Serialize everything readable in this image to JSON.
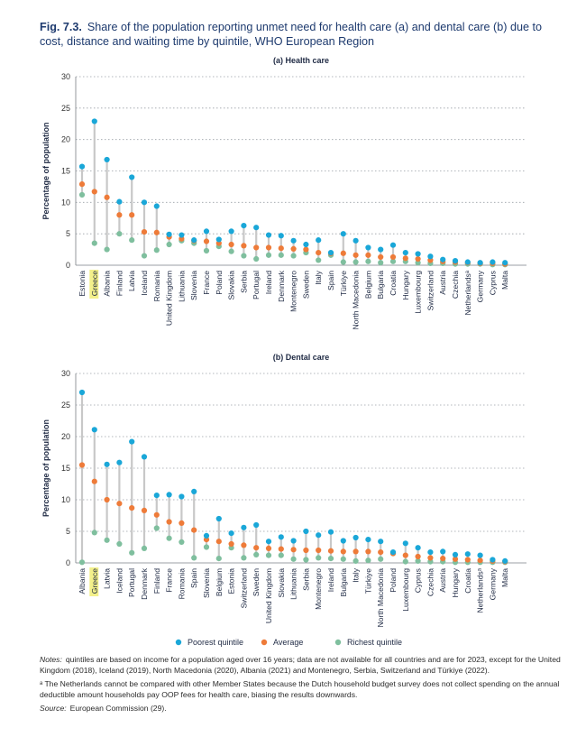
{
  "figure": {
    "number": "Fig. 7.3.",
    "title": "Share of the population reporting unmet need for health care (a) and dental care (b) due to cost, distance and waiting time by quintile, WHO European Region"
  },
  "legend": {
    "items": [
      {
        "label": "Poorest quintile",
        "color": "#1aa7d8"
      },
      {
        "label": "Average",
        "color": "#ee7b39"
      },
      {
        "label": "Richest quintile",
        "color": "#7fbf9e"
      }
    ]
  },
  "notes": {
    "notes_label": "Notes:",
    "notes_text": "quintiles are based on income for a population aged over 16 years; data are not available for all countries and are for 2023, except for the United Kingdom (2018), Iceland (2019), North Macedonia (2020), Albania (2021) and Montenegro, Serbia, Switzerland and Türkiye (2022).",
    "footnote_mark": "ᵃ",
    "footnote_text": "The Netherlands cannot be compared with other Member States because the Dutch household budget survey does not collect spending on the annual deductible amount households pay OOP fees for health care, biasing the results downwards.",
    "source_label": "Source:",
    "source_text": "European Commission (29)."
  },
  "colors": {
    "poorest": "#1aa7d8",
    "average": "#ee7b39",
    "richest": "#7fbf9e",
    "range_line": "#c8c8c8",
    "highlight": "#f3f08a"
  },
  "chart_data": [
    {
      "type": "scatter",
      "title": "(a) Health care",
      "ylabel": "Percentage of population",
      "xlabel": "",
      "ylim": [
        0,
        30
      ],
      "yticks": [
        0,
        5,
        10,
        15,
        20,
        25,
        30
      ],
      "grid": true,
      "highlight": "Greece",
      "categories": [
        "Estonia",
        "Greece",
        "Albania",
        "Finland",
        "Latvia",
        "Iceland",
        "Romania",
        "United Kingdom",
        "Lithuania",
        "Slovenia",
        "France",
        "Poland",
        "Slovakia",
        "Serbia",
        "Portugal",
        "Ireland",
        "Denmark",
        "Montenegro",
        "Sweden",
        "Italy",
        "Spain",
        "Türkiye",
        "North Macedonia",
        "Belgium",
        "Bulgaria",
        "Croatia",
        "Hungary",
        "Luxembourg",
        "Switzerland",
        "Austria",
        "Czechia",
        "Netherlandsᵃ",
        "Germany",
        "Cyprus",
        "Malta"
      ],
      "series": [
        {
          "name": "Poorest quintile",
          "values": [
            15.7,
            22.9,
            16.8,
            10.1,
            14.0,
            10.0,
            9.4,
            4.9,
            4.8,
            4.0,
            5.4,
            4.1,
            5.4,
            6.3,
            6.0,
            4.8,
            4.7,
            3.9,
            3.3,
            4.0,
            2.0,
            5.0,
            3.9,
            2.8,
            2.5,
            3.2,
            2.0,
            1.8,
            1.4,
            0.9,
            0.7,
            0.5,
            0.4,
            0.5,
            0.4
          ]
        },
        {
          "name": "Average",
          "values": [
            12.9,
            11.7,
            10.8,
            8.0,
            8.0,
            5.3,
            5.2,
            4.5,
            4.2,
            3.9,
            3.8,
            3.5,
            3.3,
            3.1,
            2.8,
            2.8,
            2.7,
            2.6,
            2.5,
            2.0,
            1.9,
            1.9,
            1.6,
            1.6,
            1.3,
            1.3,
            1.1,
            1.0,
            0.8,
            0.6,
            0.5,
            0.4,
            0.3,
            0.3,
            0.2
          ]
        },
        {
          "name": "Richest quintile",
          "values": [
            11.2,
            3.5,
            2.5,
            5.0,
            4.0,
            1.5,
            2.4,
            3.3,
            3.9,
            3.5,
            2.3,
            3.0,
            2.2,
            1.5,
            1.0,
            1.6,
            1.6,
            1.5,
            2.0,
            0.8,
            1.6,
            0.5,
            0.5,
            0.6,
            0.4,
            0.6,
            0.6,
            0.4,
            0.3,
            0.3,
            0.2,
            0.2,
            0.2,
            0.1,
            0.1
          ]
        }
      ]
    },
    {
      "type": "scatter",
      "title": "(b) Dental care",
      "ylabel": "Percentage of population",
      "xlabel": "",
      "ylim": [
        0,
        30
      ],
      "yticks": [
        0,
        5,
        10,
        15,
        20,
        25,
        30
      ],
      "grid": true,
      "highlight": "Greece",
      "categories": [
        "Albania",
        "Greece",
        "Latvia",
        "Iceland",
        "Portugal",
        "Denmark",
        "Finland",
        "France",
        "Romania",
        "Spain",
        "Slovenia",
        "Belgium",
        "Estonia",
        "Switzerland",
        "Sweden",
        "United Kingdom",
        "Slovakia",
        "Lithuania",
        "Serbia",
        "Montenegro",
        "Ireland",
        "Bulgaria",
        "Italy",
        "Türkiye",
        "North Macedonia",
        "Poland",
        "Luxembourg",
        "Cyprus",
        "Czechia",
        "Austria",
        "Hungary",
        "Croatia",
        "Netherlandsᵃ",
        "Germany",
        "Malta"
      ],
      "series": [
        {
          "name": "Poorest quintile",
          "values": [
            27.0,
            21.1,
            15.6,
            15.9,
            19.2,
            16.8,
            10.7,
            10.8,
            10.5,
            11.3,
            4.3,
            7.0,
            4.7,
            5.6,
            6.0,
            3.4,
            4.1,
            3.5,
            5.0,
            4.4,
            4.9,
            3.5,
            4.0,
            3.7,
            3.4,
            1.7,
            3.1,
            2.4,
            1.7,
            1.8,
            1.3,
            1.4,
            1.2,
            0.5,
            0.3
          ]
        },
        {
          "name": "Average",
          "values": [
            15.5,
            12.9,
            10.0,
            9.4,
            8.7,
            8.3,
            7.6,
            6.5,
            6.3,
            5.2,
            3.7,
            3.4,
            3.0,
            2.8,
            2.4,
            2.3,
            2.2,
            2.1,
            2.0,
            2.0,
            1.9,
            1.8,
            1.8,
            1.8,
            1.7,
            1.5,
            1.2,
            1.0,
            0.8,
            0.7,
            0.6,
            0.5,
            0.4,
            0.3,
            0.2
          ]
        },
        {
          "name": "Richest quintile",
          "values": [
            0.1,
            4.8,
            3.6,
            3.0,
            1.6,
            2.3,
            5.5,
            3.9,
            3.3,
            0.8,
            2.5,
            0.7,
            2.4,
            0.8,
            1.3,
            1.2,
            1.2,
            0.6,
            0.5,
            0.8,
            0.7,
            0.6,
            0.3,
            0.4,
            0.6,
            1.5,
            0.2,
            0.3,
            0.2,
            0.2,
            0.1,
            0.1,
            0.1,
            0.1,
            0.1
          ]
        }
      ]
    }
  ]
}
